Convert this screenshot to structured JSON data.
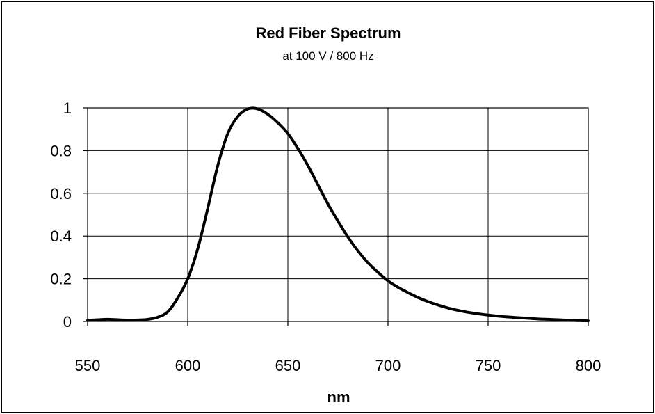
{
  "chart_data": {
    "type": "line",
    "title": "Red Fiber Spectrum",
    "subtitle": "at 100 V / 800 Hz",
    "xlabel": "nm",
    "ylabel": "",
    "xlim": [
      550,
      800
    ],
    "ylim": [
      0,
      1
    ],
    "xticks": [
      550,
      600,
      650,
      700,
      750,
      800
    ],
    "yticks": [
      0,
      0.2,
      0.4,
      0.6,
      0.8,
      1
    ],
    "xtick_labels": [
      "550",
      "600",
      "650",
      "700",
      "750",
      "800"
    ],
    "ytick_labels": [
      "0",
      "0.2",
      "0.4",
      "0.6",
      "0.8",
      "1"
    ],
    "grid": true,
    "legend": "none",
    "line_color": "#000000",
    "series": [
      {
        "x": [
          550,
          555,
          560,
          565,
          570,
          575,
          580,
          585,
          590,
          595,
          600,
          605,
          610,
          615,
          620,
          625,
          630,
          635,
          640,
          645,
          650,
          655,
          660,
          665,
          670,
          675,
          680,
          685,
          690,
          695,
          700,
          705,
          710,
          715,
          720,
          725,
          730,
          735,
          740,
          745,
          750,
          755,
          760,
          765,
          770,
          775,
          780,
          785,
          790,
          795,
          800
        ],
        "y": [
          0.005,
          0.008,
          0.01,
          0.008,
          0.006,
          0.007,
          0.01,
          0.02,
          0.045,
          0.11,
          0.2,
          0.34,
          0.53,
          0.73,
          0.88,
          0.96,
          0.995,
          0.995,
          0.97,
          0.93,
          0.88,
          0.81,
          0.73,
          0.64,
          0.55,
          0.47,
          0.395,
          0.33,
          0.275,
          0.23,
          0.19,
          0.16,
          0.135,
          0.112,
          0.093,
          0.077,
          0.063,
          0.052,
          0.043,
          0.036,
          0.03,
          0.025,
          0.021,
          0.018,
          0.015,
          0.012,
          0.01,
          0.008,
          0.006,
          0.004,
          0.003
        ]
      }
    ]
  }
}
